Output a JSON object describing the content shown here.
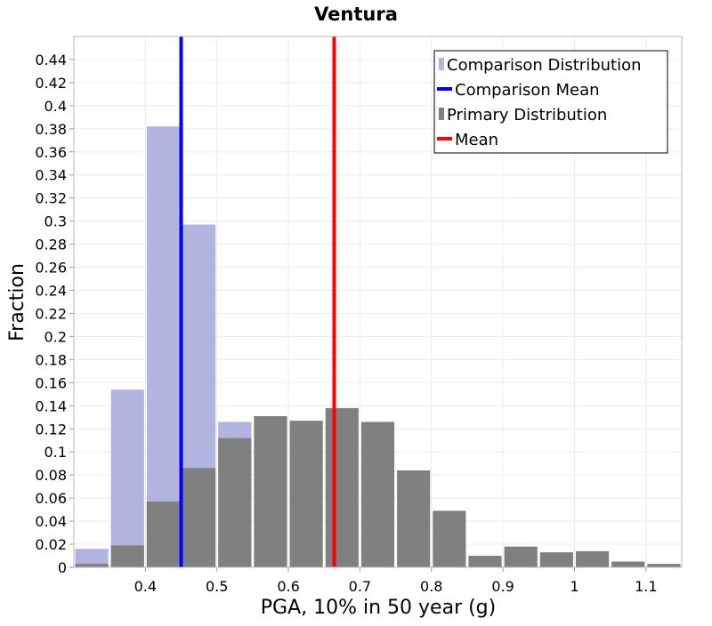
{
  "chart_data": {
    "type": "bar",
    "title": "Ventura",
    "xlabel": "PGA, 10% in 50 year (g)",
    "ylabel": "Fraction",
    "xlim": [
      0.3,
      1.15
    ],
    "ylim": [
      0,
      0.46
    ],
    "grid": true,
    "legend_position": "top-right",
    "x_ticks": [
      "0.4",
      "0.5",
      "0.6",
      "0.7",
      "0.8",
      "0.9",
      "1",
      "1.1"
    ],
    "y_ticks": [
      "0",
      "0.02",
      "0.04",
      "0.06",
      "0.08",
      "0.1",
      "0.12",
      "0.14",
      "0.16",
      "0.18",
      "0.2",
      "0.22",
      "0.24",
      "0.26",
      "0.28",
      "0.3",
      "0.32",
      "0.34",
      "0.36",
      "0.38",
      "0.4",
      "0.42",
      "0.44"
    ],
    "bin_width": 0.05,
    "comparison_distribution": {
      "name": "Comparison Distribution",
      "color": "#b3b3e0",
      "bins": [
        {
          "x": 0.325,
          "y": 0.016
        },
        {
          "x": 0.375,
          "y": 0.154
        },
        {
          "x": 0.425,
          "y": 0.382
        },
        {
          "x": 0.475,
          "y": 0.297
        },
        {
          "x": 0.525,
          "y": 0.126
        },
        {
          "x": 0.575,
          "y": 0.013
        },
        {
          "x": 0.625,
          "y": 0.0
        }
      ]
    },
    "primary_distribution": {
      "name": "Primary Distribution",
      "color": "#808080",
      "bins": [
        {
          "x": 0.325,
          "y": 0.003
        },
        {
          "x": 0.375,
          "y": 0.019
        },
        {
          "x": 0.425,
          "y": 0.057
        },
        {
          "x": 0.475,
          "y": 0.086
        },
        {
          "x": 0.525,
          "y": 0.112
        },
        {
          "x": 0.575,
          "y": 0.131
        },
        {
          "x": 0.625,
          "y": 0.127
        },
        {
          "x": 0.675,
          "y": 0.138
        },
        {
          "x": 0.725,
          "y": 0.126
        },
        {
          "x": 0.775,
          "y": 0.084
        },
        {
          "x": 0.825,
          "y": 0.049
        },
        {
          "x": 0.875,
          "y": 0.01
        },
        {
          "x": 0.925,
          "y": 0.018
        },
        {
          "x": 0.975,
          "y": 0.013
        },
        {
          "x": 1.025,
          "y": 0.014
        },
        {
          "x": 1.075,
          "y": 0.005
        },
        {
          "x": 1.125,
          "y": 0.003
        }
      ]
    },
    "comparison_mean": {
      "name": "Comparison Mean",
      "x": 0.45,
      "color": "#0000ff"
    },
    "mean": {
      "name": "Mean",
      "x": 0.664,
      "color": "#ff0000"
    },
    "legend": [
      {
        "label": "Comparison Distribution",
        "kind": "box",
        "color": "#b3b3e0"
      },
      {
        "label": "Comparison Mean",
        "kind": "line",
        "color": "#0000ff"
      },
      {
        "label": "Primary Distribution",
        "kind": "box",
        "color": "#808080"
      },
      {
        "label": "Mean",
        "kind": "line",
        "color": "#ff0000"
      }
    ]
  }
}
